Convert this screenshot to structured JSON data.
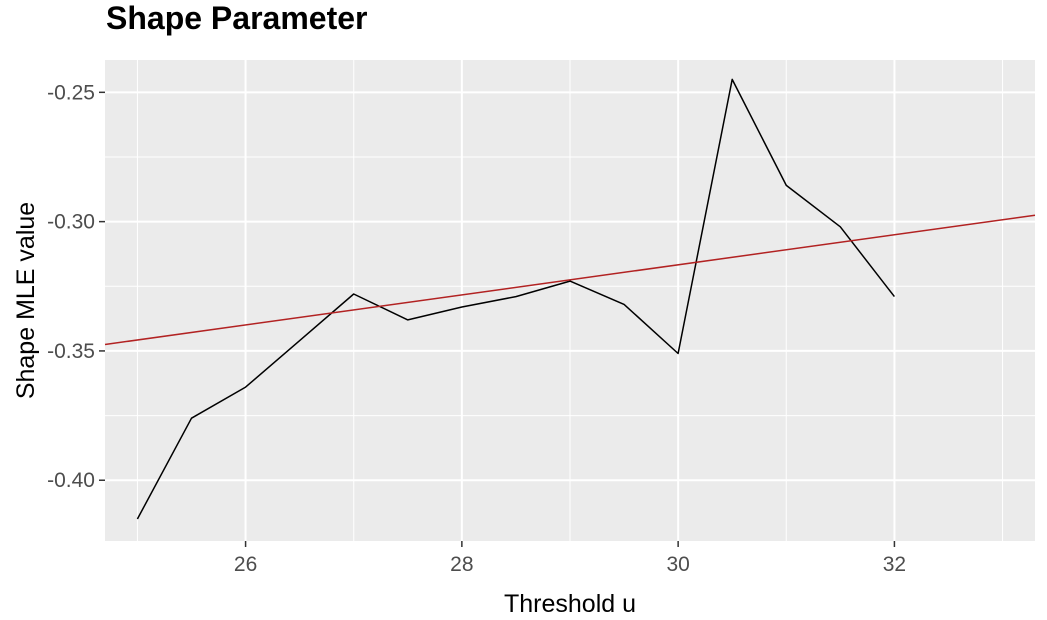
{
  "chart_data": {
    "type": "line",
    "title": "Shape Parameter",
    "xlabel": "Threshold u",
    "ylabel": "Shape MLE value",
    "xlim": [
      24.7,
      33.3
    ],
    "ylim": [
      -0.4235,
      -0.2375
    ],
    "x_ticks": [
      26,
      28,
      30,
      32
    ],
    "x_tick_labels": [
      "26",
      "28",
      "30",
      "32"
    ],
    "y_ticks": [
      -0.25,
      -0.3,
      -0.35,
      -0.4
    ],
    "y_tick_labels": [
      "-0.25",
      "-0.30",
      "-0.35",
      "-0.40"
    ],
    "grid": true,
    "series": [
      {
        "color": "#000000",
        "x": [
          25,
          25.5,
          26,
          26.5,
          27,
          27.5,
          28,
          28.5,
          29,
          29.5,
          30,
          30.5,
          31,
          31.5,
          32
        ],
        "values": [
          -0.415,
          -0.376,
          -0.364,
          -0.346,
          -0.328,
          -0.338,
          -0.333,
          -0.329,
          -0.323,
          -0.332,
          -0.351,
          -0.245,
          -0.286,
          -0.302,
          -0.329
        ]
      },
      {
        "color": "#b22222",
        "x": [
          24.7,
          33.3
        ],
        "values": [
          -0.3475,
          -0.2975
        ]
      }
    ]
  }
}
